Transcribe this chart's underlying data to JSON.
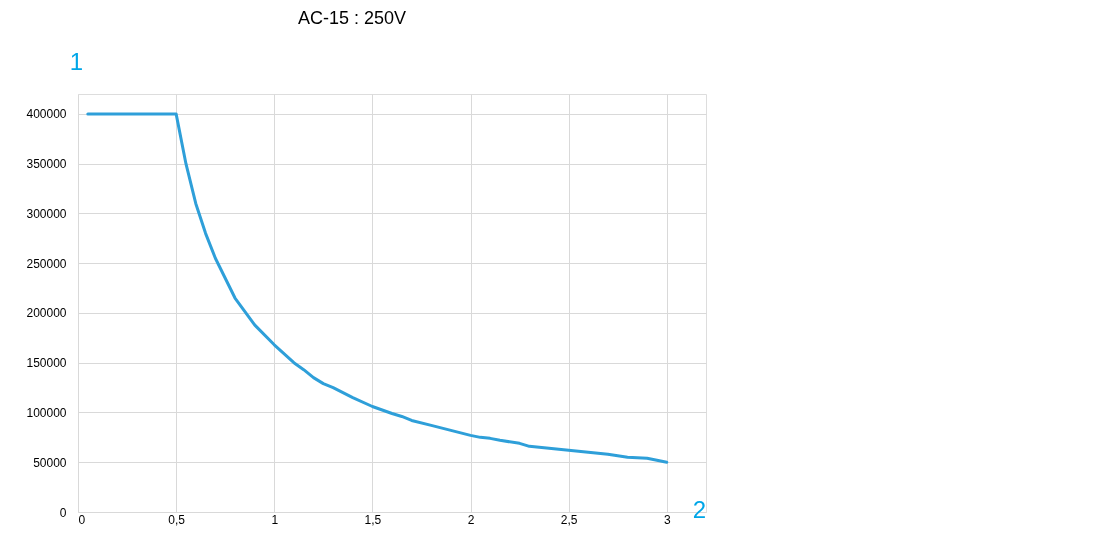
{
  "chart_data": {
    "type": "line",
    "title": "AC-15 : 250V",
    "xlabel": "2",
    "ylabel": "1",
    "x": [
      0.05,
      0.5,
      0.55,
      0.6,
      0.65,
      0.7,
      0.8,
      0.9,
      1.0,
      1.1,
      1.15,
      1.2,
      1.25,
      1.3,
      1.4,
      1.5,
      1.6,
      1.65,
      1.7,
      1.8,
      1.9,
      2.0,
      2.05,
      2.1,
      2.15,
      2.25,
      2.3,
      2.5,
      2.6,
      2.7,
      2.8,
      2.9,
      3.0
    ],
    "series": [
      {
        "color": "#2e9fd9",
        "values": [
          400000,
          400000,
          350000,
          310000,
          280000,
          255000,
          215000,
          188000,
          168000,
          150000,
          143000,
          135000,
          129000,
          125000,
          115000,
          106000,
          99000,
          96000,
          92000,
          87000,
          82000,
          77000,
          75000,
          74000,
          72000,
          69000,
          66000,
          62000,
          60000,
          58000,
          55000,
          54000,
          50000
        ]
      }
    ],
    "xlim": [
      0,
      3.2
    ],
    "ylim": [
      0,
      420000
    ],
    "xticks": [
      0,
      {
        "value": 0.5,
        "label": "0,5"
      },
      1,
      {
        "value": 1.5,
        "label": "1,5"
      },
      2,
      {
        "value": 2.5,
        "label": "2,5"
      },
      3
    ],
    "yticks": [
      0,
      50000,
      100000,
      150000,
      200000,
      250000,
      300000,
      350000,
      400000
    ],
    "grid": true,
    "legend": false,
    "marker": "none",
    "line_style": "solid"
  }
}
